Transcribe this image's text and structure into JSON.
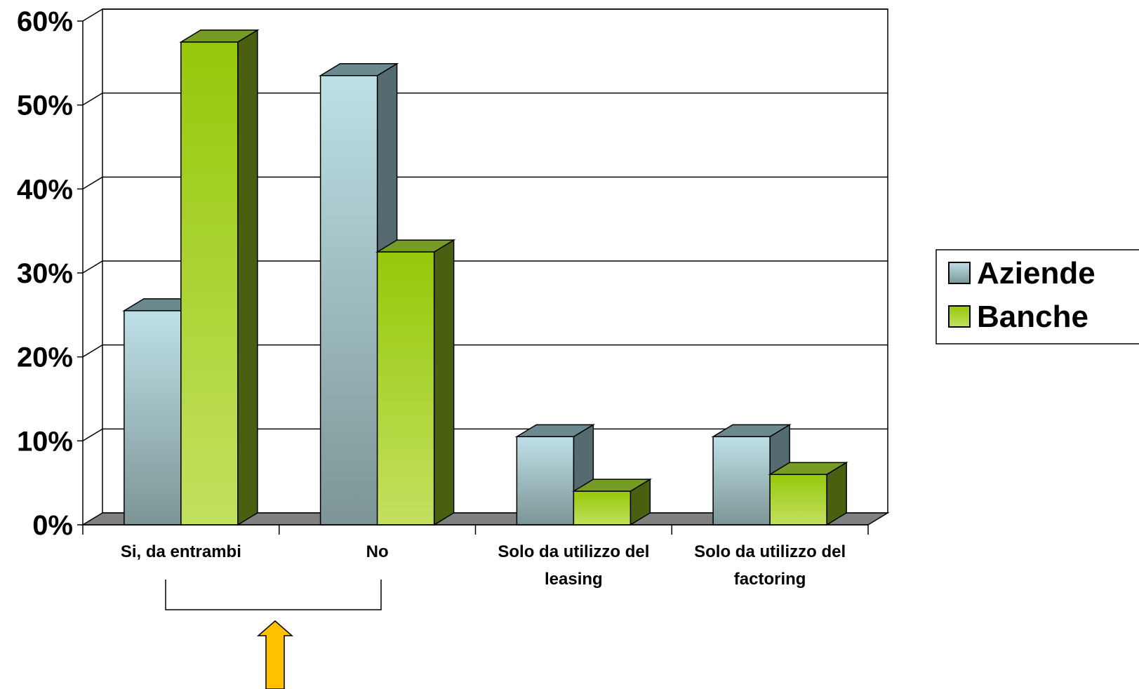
{
  "chart_data": {
    "type": "bar",
    "categories": [
      [
        "Si, da entrambi"
      ],
      [
        "No"
      ],
      [
        "Solo da utilizzo del",
        "leasing"
      ],
      [
        "Solo da utilizzo del",
        "factoring"
      ]
    ],
    "series": [
      {
        "name": "Aziende",
        "values": [
          25.5,
          53.5,
          10.5,
          10.5
        ]
      },
      {
        "name": "Banche",
        "values": [
          57.5,
          32.5,
          4,
          6
        ]
      }
    ],
    "yticks": [
      "0%",
      "10%",
      "20%",
      "30%",
      "40%",
      "50%",
      "60%"
    ],
    "ylim": [
      0,
      60
    ],
    "grid": true,
    "legend_position": "right",
    "colors": {
      "aziende": {
        "front_top": "#bde0e6",
        "front_bottom": "#7d9596",
        "side": "#566b70",
        "top": "#6a8a90"
      },
      "banche": {
        "front_top": "#96c80a",
        "front_bottom": "#c3e060",
        "side": "#4a6010",
        "top": "#769c26"
      },
      "floor": "#808080",
      "arrow": "#ffc000"
    }
  }
}
